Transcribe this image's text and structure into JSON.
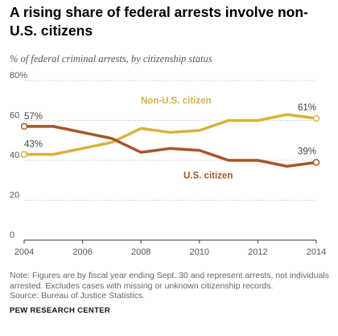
{
  "header": {
    "title": "A rising share of federal arrests involve non-U.S. citizens",
    "subtitle": "% of federal criminal arrests, by citizenship status"
  },
  "chart_data": {
    "type": "line",
    "x": [
      2004,
      2005,
      2006,
      2007,
      2008,
      2009,
      2010,
      2011,
      2012,
      2013,
      2014
    ],
    "xticks": [
      2004,
      2006,
      2008,
      2010,
      2012,
      2014
    ],
    "yticks": [
      0,
      20,
      40,
      60,
      80
    ],
    "ytick_labels": [
      "0",
      "20",
      "40",
      "60",
      "80%"
    ],
    "ylim": [
      0,
      80
    ],
    "xlim": [
      2004,
      2014
    ],
    "grid": "horizontal dotted",
    "series": [
      {
        "name": "Non-U.S. citizen",
        "color": "#d9b23d",
        "values": [
          43,
          43,
          46,
          49,
          56,
          54,
          55,
          60,
          60,
          63,
          61
        ],
        "start_label": "43%",
        "end_label": "61%"
      },
      {
        "name": "U.S. citizen",
        "color": "#a8552a",
        "values": [
          57,
          57,
          54,
          51,
          44,
          46,
          45,
          40,
          40,
          37,
          39
        ],
        "start_label": "57%",
        "end_label": "39%"
      }
    ]
  },
  "footer": {
    "note": "Note: Figures are by fiscal year ending Sept. 30 and represent arrests, not individuals arrested. Excludes cases with missing or unknown citizenship records.",
    "source": "Source: Bureau of Justice Statistics.",
    "brand": "PEW RESEARCH CENTER"
  }
}
